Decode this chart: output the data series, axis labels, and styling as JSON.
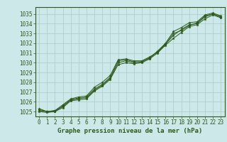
{
  "title": "Graphe pression niveau de la mer (hPa)",
  "bg_color": "#cce8e8",
  "grid_color": "#aacccc",
  "line_color": "#2d5a1b",
  "marker_color": "#2d5a1b",
  "xlim": [
    -0.5,
    23.5
  ],
  "ylim": [
    1024.5,
    1035.7
  ],
  "yticks": [
    1025,
    1026,
    1027,
    1028,
    1029,
    1030,
    1031,
    1032,
    1033,
    1034,
    1035
  ],
  "xticks": [
    0,
    1,
    2,
    3,
    4,
    5,
    6,
    7,
    8,
    9,
    10,
    11,
    12,
    13,
    14,
    15,
    16,
    17,
    18,
    19,
    20,
    21,
    22,
    23
  ],
  "series": [
    [
      1025.2,
      1025.0,
      1025.1,
      1025.5,
      1026.2,
      1026.3,
      1026.5,
      1027.3,
      1027.8,
      1028.5,
      1030.2,
      1030.3,
      1030.1,
      1030.1,
      1030.5,
      1031.2,
      1032.0,
      1033.2,
      1033.6,
      1034.1,
      1034.2,
      1034.9,
      1035.1,
      1034.8
    ],
    [
      1025.3,
      1025.0,
      1025.1,
      1025.7,
      1026.3,
      1026.5,
      1026.6,
      1027.5,
      1028.0,
      1028.7,
      1030.3,
      1030.4,
      1030.2,
      1030.2,
      1030.6,
      1031.1,
      1031.9,
      1032.8,
      1033.4,
      1033.9,
      1034.0,
      1034.7,
      1035.0,
      1034.7
    ],
    [
      1025.0,
      1024.9,
      1025.0,
      1025.4,
      1026.1,
      1026.2,
      1026.3,
      1027.1,
      1027.6,
      1028.3,
      1029.8,
      1030.0,
      1029.9,
      1030.0,
      1030.4,
      1031.0,
      1031.8,
      1032.5,
      1033.1,
      1033.7,
      1033.9,
      1034.5,
      1034.9,
      1034.6
    ],
    [
      1025.1,
      1025.0,
      1025.0,
      1025.6,
      1026.2,
      1026.4,
      1026.4,
      1027.2,
      1027.7,
      1028.4,
      1030.0,
      1030.2,
      1030.0,
      1030.1,
      1030.5,
      1031.1,
      1031.9,
      1033.0,
      1033.3,
      1033.8,
      1034.1,
      1034.8,
      1035.0,
      1034.7
    ]
  ],
  "tick_fontsize": 5.5,
  "title_fontsize": 6.5
}
